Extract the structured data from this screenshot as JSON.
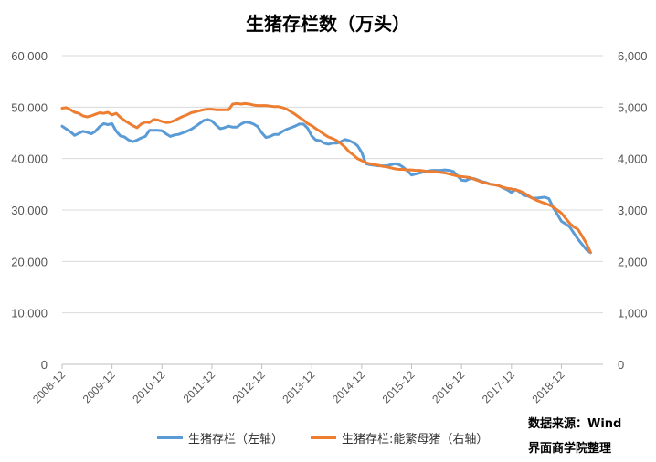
{
  "chart_data": {
    "type": "line",
    "title": "生猪存栏数（万头）",
    "x_ticks": [
      "2008-12",
      "2009-12",
      "2010-12",
      "2011-12",
      "2012-12",
      "2013-12",
      "2014-12",
      "2015-12",
      "2016-12",
      "2017-12",
      "2018-12"
    ],
    "x_range": [
      "2008-12",
      "2019-10"
    ],
    "y_left": {
      "ticks": [
        "0",
        "10,000",
        "20,000",
        "30,000",
        "40,000",
        "50,000",
        "60,000"
      ],
      "ylim": [
        0,
        60000
      ]
    },
    "y_right": {
      "ticks": [
        "0",
        "1,000",
        "2,000",
        "3,000",
        "4,000",
        "5,000",
        "6,000"
      ],
      "ylim": [
        0,
        6000
      ]
    },
    "grid": true,
    "legend_position": "bottom",
    "series": [
      {
        "name": "生猪存栏（左轴）",
        "axis": "left",
        "color": "#5b9bd5",
        "points": [
          [
            "2008-12",
            46300
          ],
          [
            "2009-02",
            45200
          ],
          [
            "2009-03",
            44500
          ],
          [
            "2009-05",
            45300
          ],
          [
            "2009-06",
            45100
          ],
          [
            "2009-07",
            44800
          ],
          [
            "2009-08",
            45300
          ],
          [
            "2009-09",
            46200
          ],
          [
            "2009-10",
            46800
          ],
          [
            "2009-11",
            46600
          ],
          [
            "2009-12",
            46800
          ],
          [
            "2010-01",
            45300
          ],
          [
            "2010-02",
            44400
          ],
          [
            "2010-03",
            44200
          ],
          [
            "2010-04",
            43600
          ],
          [
            "2010-05",
            43300
          ],
          [
            "2010-06",
            43600
          ],
          [
            "2010-07",
            44000
          ],
          [
            "2010-08",
            44300
          ],
          [
            "2010-09",
            45500
          ],
          [
            "2010-10",
            45500
          ],
          [
            "2010-11",
            45500
          ],
          [
            "2010-12",
            45400
          ],
          [
            "2011-01",
            44800
          ],
          [
            "2011-02",
            44300
          ],
          [
            "2011-03",
            44600
          ],
          [
            "2011-04",
            44700
          ],
          [
            "2011-05",
            45000
          ],
          [
            "2011-06",
            45300
          ],
          [
            "2011-07",
            45700
          ],
          [
            "2011-08",
            46200
          ],
          [
            "2011-09",
            46800
          ],
          [
            "2011-10",
            47400
          ],
          [
            "2011-11",
            47600
          ],
          [
            "2011-12",
            47300
          ],
          [
            "2012-01",
            46500
          ],
          [
            "2012-02",
            45800
          ],
          [
            "2012-03",
            46000
          ],
          [
            "2012-04",
            46300
          ],
          [
            "2012-05",
            46100
          ],
          [
            "2012-06",
            46100
          ],
          [
            "2012-07",
            46700
          ],
          [
            "2012-08",
            47100
          ],
          [
            "2012-09",
            47000
          ],
          [
            "2012-10",
            46700
          ],
          [
            "2012-11",
            46200
          ],
          [
            "2012-12",
            45000
          ],
          [
            "2013-01",
            44100
          ],
          [
            "2013-02",
            44300
          ],
          [
            "2013-03",
            44700
          ],
          [
            "2013-04",
            44700
          ],
          [
            "2013-05",
            45300
          ],
          [
            "2013-06",
            45700
          ],
          [
            "2013-07",
            46000
          ],
          [
            "2013-08",
            46300
          ],
          [
            "2013-09",
            46700
          ],
          [
            "2013-10",
            46700
          ],
          [
            "2013-11",
            45900
          ],
          [
            "2013-12",
            44400
          ],
          [
            "2014-01",
            43600
          ],
          [
            "2014-02",
            43500
          ],
          [
            "2014-03",
            43000
          ],
          [
            "2014-04",
            42800
          ],
          [
            "2014-05",
            43000
          ],
          [
            "2014-06",
            43000
          ],
          [
            "2014-07",
            43300
          ],
          [
            "2014-08",
            43700
          ],
          [
            "2014-09",
            43500
          ],
          [
            "2014-10",
            43100
          ],
          [
            "2014-11",
            42500
          ],
          [
            "2014-12",
            41200
          ],
          [
            "2015-01",
            39000
          ],
          [
            "2015-02",
            38800
          ],
          [
            "2015-03",
            38700
          ],
          [
            "2015-04",
            38600
          ],
          [
            "2015-05",
            38600
          ],
          [
            "2015-06",
            38600
          ],
          [
            "2015-07",
            38800
          ],
          [
            "2015-08",
            39000
          ],
          [
            "2015-09",
            38800
          ],
          [
            "2015-10",
            38300
          ],
          [
            "2015-11",
            37600
          ],
          [
            "2015-12",
            36800
          ],
          [
            "2016-01",
            37000
          ],
          [
            "2016-02",
            37200
          ],
          [
            "2016-03",
            37400
          ],
          [
            "2016-04",
            37600
          ],
          [
            "2016-05",
            37700
          ],
          [
            "2016-06",
            37700
          ],
          [
            "2016-07",
            37700
          ],
          [
            "2016-08",
            37800
          ],
          [
            "2016-09",
            37700
          ],
          [
            "2016-10",
            37500
          ],
          [
            "2016-11",
            36700
          ],
          [
            "2016-12",
            35800
          ],
          [
            "2017-01",
            35700
          ],
          [
            "2017-02",
            36100
          ],
          [
            "2017-03",
            36100
          ],
          [
            "2017-04",
            35800
          ],
          [
            "2017-05",
            35500
          ],
          [
            "2017-06",
            35300
          ],
          [
            "2017-07",
            35000
          ],
          [
            "2017-08",
            34900
          ],
          [
            "2017-09",
            34700
          ],
          [
            "2017-10",
            34300
          ],
          [
            "2017-11",
            33900
          ],
          [
            "2017-12",
            33400
          ],
          [
            "2018-01",
            34000
          ],
          [
            "2018-02",
            33500
          ],
          [
            "2018-03",
            32800
          ],
          [
            "2018-04",
            32700
          ],
          [
            "2018-05",
            32300
          ],
          [
            "2018-06",
            32300
          ],
          [
            "2018-07",
            32400
          ],
          [
            "2018-08",
            32500
          ],
          [
            "2018-09",
            32200
          ],
          [
            "2018-10",
            30500
          ],
          [
            "2018-11",
            29200
          ],
          [
            "2018-12",
            27800
          ],
          [
            "2019-01",
            27300
          ],
          [
            "2019-02",
            26700
          ],
          [
            "2019-03",
            25500
          ],
          [
            "2019-04",
            24300
          ],
          [
            "2019-05",
            23300
          ],
          [
            "2019-06",
            22300
          ],
          [
            "2019-07",
            21700
          ]
        ]
      },
      {
        "name": "生猪存栏:能繁母猪（右轴）",
        "axis": "right",
        "color": "#ed7d31",
        "points": [
          [
            "2008-12",
            4980
          ],
          [
            "2009-01",
            4990
          ],
          [
            "2009-02",
            4950
          ],
          [
            "2009-03",
            4900
          ],
          [
            "2009-04",
            4880
          ],
          [
            "2009-05",
            4830
          ],
          [
            "2009-06",
            4810
          ],
          [
            "2009-07",
            4830
          ],
          [
            "2009-08",
            4860
          ],
          [
            "2009-09",
            4890
          ],
          [
            "2009-10",
            4880
          ],
          [
            "2009-11",
            4900
          ],
          [
            "2009-12",
            4850
          ],
          [
            "2010-01",
            4880
          ],
          [
            "2010-02",
            4800
          ],
          [
            "2010-03",
            4740
          ],
          [
            "2010-04",
            4690
          ],
          [
            "2010-05",
            4640
          ],
          [
            "2010-06",
            4600
          ],
          [
            "2010-07",
            4670
          ],
          [
            "2010-08",
            4710
          ],
          [
            "2010-09",
            4700
          ],
          [
            "2010-10",
            4760
          ],
          [
            "2010-11",
            4750
          ],
          [
            "2010-12",
            4720
          ],
          [
            "2011-01",
            4700
          ],
          [
            "2011-02",
            4710
          ],
          [
            "2011-03",
            4740
          ],
          [
            "2011-04",
            4780
          ],
          [
            "2011-05",
            4820
          ],
          [
            "2011-06",
            4850
          ],
          [
            "2011-07",
            4890
          ],
          [
            "2011-08",
            4910
          ],
          [
            "2011-09",
            4930
          ],
          [
            "2011-10",
            4950
          ],
          [
            "2011-11",
            4960
          ],
          [
            "2011-12",
            4960
          ],
          [
            "2012-01",
            4950
          ],
          [
            "2012-02",
            4950
          ],
          [
            "2012-03",
            4950
          ],
          [
            "2012-04",
            4950
          ],
          [
            "2012-05",
            5060
          ],
          [
            "2012-06",
            5070
          ],
          [
            "2012-07",
            5060
          ],
          [
            "2012-08",
            5070
          ],
          [
            "2012-09",
            5060
          ],
          [
            "2012-10",
            5040
          ],
          [
            "2012-11",
            5030
          ],
          [
            "2012-12",
            5030
          ],
          [
            "2013-01",
            5030
          ],
          [
            "2013-02",
            5020
          ],
          [
            "2013-03",
            5010
          ],
          [
            "2013-04",
            5010
          ],
          [
            "2013-05",
            4990
          ],
          [
            "2013-06",
            4960
          ],
          [
            "2013-07",
            4910
          ],
          [
            "2013-08",
            4860
          ],
          [
            "2013-09",
            4800
          ],
          [
            "2013-10",
            4750
          ],
          [
            "2013-11",
            4680
          ],
          [
            "2013-12",
            4640
          ],
          [
            "2014-01",
            4580
          ],
          [
            "2014-02",
            4530
          ],
          [
            "2014-03",
            4470
          ],
          [
            "2014-04",
            4420
          ],
          [
            "2014-05",
            4390
          ],
          [
            "2014-06",
            4350
          ],
          [
            "2014-07",
            4290
          ],
          [
            "2014-08",
            4220
          ],
          [
            "2014-09",
            4130
          ],
          [
            "2014-10",
            4070
          ],
          [
            "2014-11",
            4000
          ],
          [
            "2014-12",
            3960
          ],
          [
            "2015-01",
            3920
          ],
          [
            "2015-02",
            3900
          ],
          [
            "2015-03",
            3880
          ],
          [
            "2015-04",
            3870
          ],
          [
            "2015-05",
            3850
          ],
          [
            "2015-06",
            3840
          ],
          [
            "2015-07",
            3820
          ],
          [
            "2015-08",
            3800
          ],
          [
            "2015-09",
            3790
          ],
          [
            "2015-10",
            3790
          ],
          [
            "2015-11",
            3780
          ],
          [
            "2015-12",
            3780
          ],
          [
            "2016-01",
            3770
          ],
          [
            "2016-02",
            3770
          ],
          [
            "2016-03",
            3760
          ],
          [
            "2016-04",
            3750
          ],
          [
            "2016-05",
            3750
          ],
          [
            "2016-06",
            3740
          ],
          [
            "2016-07",
            3730
          ],
          [
            "2016-08",
            3720
          ],
          [
            "2016-09",
            3700
          ],
          [
            "2016-10",
            3680
          ],
          [
            "2016-11",
            3660
          ],
          [
            "2016-12",
            3650
          ],
          [
            "2017-01",
            3640
          ],
          [
            "2017-02",
            3630
          ],
          [
            "2017-03",
            3600
          ],
          [
            "2017-04",
            3570
          ],
          [
            "2017-05",
            3540
          ],
          [
            "2017-06",
            3520
          ],
          [
            "2017-07",
            3500
          ],
          [
            "2017-08",
            3490
          ],
          [
            "2017-09",
            3470
          ],
          [
            "2017-10",
            3440
          ],
          [
            "2017-11",
            3420
          ],
          [
            "2017-12",
            3410
          ],
          [
            "2018-01",
            3390
          ],
          [
            "2018-02",
            3370
          ],
          [
            "2018-03",
            3330
          ],
          [
            "2018-04",
            3280
          ],
          [
            "2018-05",
            3230
          ],
          [
            "2018-06",
            3190
          ],
          [
            "2018-07",
            3160
          ],
          [
            "2018-08",
            3130
          ],
          [
            "2018-09",
            3100
          ],
          [
            "2018-10",
            3060
          ],
          [
            "2018-11",
            3000
          ],
          [
            "2018-12",
            2940
          ],
          [
            "2019-01",
            2840
          ],
          [
            "2019-02",
            2740
          ],
          [
            "2019-03",
            2670
          ],
          [
            "2019-04",
            2620
          ],
          [
            "2019-05",
            2490
          ],
          [
            "2019-06",
            2350
          ],
          [
            "2019-07",
            2180
          ]
        ]
      }
    ]
  },
  "source": "数据来源：Wind",
  "credit": "界面商学院整理"
}
